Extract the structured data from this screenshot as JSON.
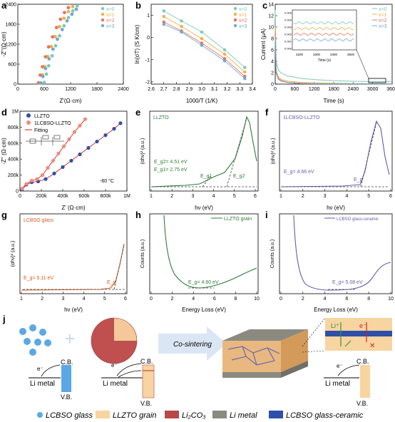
{
  "panels": {
    "a": {
      "letter": "a",
      "xlabel": "Z'(Ω·cm)",
      "ylabel": "-Z''(Ω·cm)",
      "xticks": [
        "0",
        "600",
        "1200",
        "1800",
        "2400"
      ],
      "yticks": [
        "0",
        "600",
        "1200",
        "1800",
        "2400"
      ]
    },
    "b": {
      "letter": "b",
      "xlabel": "1000/T (1/K)",
      "ylabel": "ln(σT) (S K/cm)",
      "xticks": [
        "2.6",
        "2.7",
        "2.8",
        "2.9",
        "3.0",
        "3.1",
        "3.2",
        "3.3",
        "3.4"
      ],
      "yticks": [
        "-2",
        "-1",
        "0",
        "1"
      ]
    },
    "c": {
      "letter": "c",
      "xlabel": "Time (s)",
      "ylabel": "Current (µA)",
      "xticks": [
        "0",
        "600",
        "1200",
        "1800",
        "2400",
        "3000",
        "3600"
      ],
      "yticks": [
        "0",
        "2",
        "4",
        "6",
        "8",
        "10",
        "12",
        "14"
      ],
      "inset_xlabel": "Time (s)",
      "inset_xticks": [
        "3200",
        "3300",
        "3400",
        "3500"
      ],
      "inset_yticks": [
        "0.000",
        "0.001",
        "0.002",
        "0.003",
        "0.004",
        "0.005"
      ]
    },
    "d": {
      "letter": "d",
      "xlabel": "Z' (Ω·cm)",
      "ylabel": "-Z'' (Ω·cm)",
      "xticks": [
        "0",
        "200k",
        "400k",
        "600k",
        "800k",
        "1M"
      ],
      "yticks": [
        "0",
        "200k",
        "400k",
        "600k",
        "800k",
        "1M"
      ],
      "legend": [
        "LLZTO",
        "1LCBSO-LLZTO",
        "Fitting"
      ],
      "annotation": "-60 °C"
    },
    "e": {
      "letter": "e",
      "title": "LLZTO",
      "xlabel": "hν (eV)",
      "ylabel": "(αhν)² (a.u.)",
      "xticks": [
        "1",
        "2",
        "3",
        "4",
        "5",
        "6"
      ],
      "note1": "E_g2= 4.51 eV",
      "note2": "E_g1= 2.75 eV",
      "mark1": "E_g1",
      "mark2": "E_g2"
    },
    "f": {
      "letter": "f",
      "title": "1LCBSO-LLZTO",
      "xlabel": "hν (eV)",
      "ylabel": "(αhν)² (a.u.)",
      "xticks": [
        "1",
        "2",
        "3",
        "4",
        "5",
        "6"
      ],
      "note": "E_g= 4.66 eV",
      "mark": "E_g"
    },
    "g": {
      "letter": "g",
      "title": "LCBSO glass",
      "xlabel": "hν (eV)",
      "ylabel": "(αhν)² (a.u.)",
      "xticks": [
        "1",
        "2",
        "3",
        "4",
        "5",
        "6"
      ],
      "note": "E_g= 5.11 eV",
      "mark": "E_g"
    },
    "h": {
      "letter": "h",
      "legend": "LLZTO grain",
      "xlabel": "Energy Loss (eV)",
      "ylabel": "Counts (a.u.)",
      "xticks": [
        "0",
        "2",
        "4",
        "6",
        "8",
        "10"
      ],
      "note": "E_g= 4.60 eV"
    },
    "i": {
      "letter": "i",
      "legend": "LCBSO glass-ceramic",
      "xlabel": "Energy Loss (eV)",
      "ylabel": "Counts (a.u.)",
      "xticks": [
        "0",
        "2",
        "4",
        "6",
        "8",
        "10"
      ],
      "note": "E_g= 5.08 eV"
    },
    "j": {
      "letter": "j",
      "cb": "C.B.",
      "vb": "V.B.",
      "li_metal": "Li metal",
      "electron": "e⁻",
      "process": "Co-sintering",
      "li_ion": "Li⁺"
    }
  },
  "series_names": [
    "x=0",
    "x=1",
    "x=2",
    "x=3"
  ],
  "legend_bottom": [
    "LCBSO glass",
    "LLZTO grain",
    "Li₂CO₃",
    "Li metal",
    "LCBSO glass-ceramic"
  ],
  "colors": {
    "x0": "#7dc8b9",
    "x1": "#f0b04a",
    "x2": "#e8735a",
    "x3": "#6fa8d8",
    "green": "#2e7d3a",
    "purple": "#6a5aa8",
    "orange": "#d9571f",
    "llzto": "#f8d4a0",
    "li2co3": "#b84848",
    "limetal": "#8a8a80",
    "blue": "#2f4fa8"
  },
  "chart_data": [
    {
      "panel": "a",
      "type": "scatter",
      "xlabel": "Z'(Ω·cm)",
      "ylabel": "-Z''(Ω·cm)",
      "xlim": [
        0,
        2400
      ],
      "ylim": [
        0,
        2400
      ],
      "series": [
        {
          "name": "x=0",
          "x": [
            600,
            650,
            700,
            780,
            860,
            950,
            1050,
            1150,
            1250,
            1350
          ],
          "y": [
            50,
            300,
            550,
            850,
            1150,
            1450,
            1750,
            2000,
            2200,
            2350
          ]
        },
        {
          "name": "x=1",
          "x": [
            520,
            560,
            610,
            680,
            760,
            850,
            950,
            1050,
            1150,
            1250
          ],
          "y": [
            40,
            280,
            530,
            830,
            1130,
            1430,
            1730,
            1980,
            2180,
            2330
          ]
        },
        {
          "name": "x=2",
          "x": [
            470,
            510,
            560,
            630,
            700,
            790,
            880,
            970,
            1060,
            1150
          ],
          "y": [
            40,
            270,
            520,
            820,
            1120,
            1420,
            1700,
            1950,
            2150,
            2300
          ]
        },
        {
          "name": "x=3",
          "x": [
            520,
            570,
            630,
            710,
            800,
            900,
            1010,
            1120,
            1230,
            1330
          ],
          "y": [
            30,
            230,
            470,
            760,
            1050,
            1350,
            1640,
            1900,
            2100,
            2250
          ]
        }
      ]
    },
    {
      "panel": "b",
      "type": "scatter",
      "xlabel": "1000/T (1/K)",
      "ylabel": "ln(σT) (S K/cm)",
      "xlim": [
        2.6,
        3.4
      ],
      "ylim": [
        -2.1,
        1.5
      ],
      "x": [
        2.7,
        2.84,
        3.0,
        3.18,
        3.34
      ],
      "series": [
        {
          "name": "x=0",
          "values": [
            1.2,
            0.75,
            0.25,
            -0.55,
            -1.35
          ]
        },
        {
          "name": "x=1",
          "values": [
            0.95,
            0.5,
            -0.05,
            -0.75,
            -1.55
          ]
        },
        {
          "name": "x=2",
          "values": [
            0.7,
            0.3,
            -0.25,
            -0.95,
            -1.75
          ]
        },
        {
          "name": "x=3",
          "values": [
            0.6,
            0.25,
            -0.35,
            -1.05,
            -1.85
          ]
        }
      ]
    },
    {
      "panel": "c",
      "type": "line",
      "xlabel": "Time (s)",
      "ylabel": "Current (µA)",
      "xlim": [
        0,
        3600
      ],
      "ylim": [
        0,
        14
      ],
      "x": [
        0,
        30,
        100,
        200,
        400,
        800,
        1200,
        1800,
        2400,
        3000,
        3600
      ],
      "series": [
        {
          "name": "x=0",
          "values": [
            13,
            4,
            2.4,
            1.9,
            1.4,
            1.0,
            0.8,
            0.6,
            0.5,
            0.45,
            0.4
          ]
        },
        {
          "name": "x=1",
          "values": [
            10,
            2.5,
            1.2,
            0.8,
            0.5,
            0.3,
            0.2,
            0.15,
            0.1,
            0.08,
            0.07
          ]
        },
        {
          "name": "x=2",
          "values": [
            9,
            2,
            1,
            0.6,
            0.3,
            0.15,
            0.1,
            0.08,
            0.06,
            0.05,
            0.04
          ]
        },
        {
          "name": "x=3",
          "values": [
            8,
            1.8,
            0.8,
            0.5,
            0.25,
            0.1,
            0.07,
            0.05,
            0.04,
            0.03,
            0.03
          ]
        }
      ]
    },
    {
      "panel": "d",
      "type": "scatter",
      "xlabel": "Z' (Ω·cm)",
      "ylabel": "-Z'' (Ω·cm)",
      "xlim": [
        0,
        1000000
      ],
      "ylim": [
        0,
        1000000
      ],
      "series": [
        {
          "name": "LLZTO",
          "x": [
            20000,
            60000,
            110000,
            170000,
            240000,
            320000,
            400000,
            480000,
            560000,
            640000,
            720000,
            800000,
            880000,
            940000
          ],
          "y": [
            20000,
            80000,
            110000,
            120000,
            150000,
            220000,
            300000,
            380000,
            460000,
            540000,
            620000,
            700000,
            780000,
            850000
          ]
        },
        {
          "name": "1LCBSO-LLZTO",
          "x": [
            20000,
            60000,
            110000,
            160000,
            210000,
            260000,
            310000,
            360000,
            410000,
            460000,
            510000,
            560000,
            610000
          ],
          "y": [
            30000,
            90000,
            130000,
            150000,
            200000,
            290000,
            380000,
            470000,
            560000,
            650000,
            740000,
            820000,
            900000
          ]
        }
      ]
    }
  ]
}
